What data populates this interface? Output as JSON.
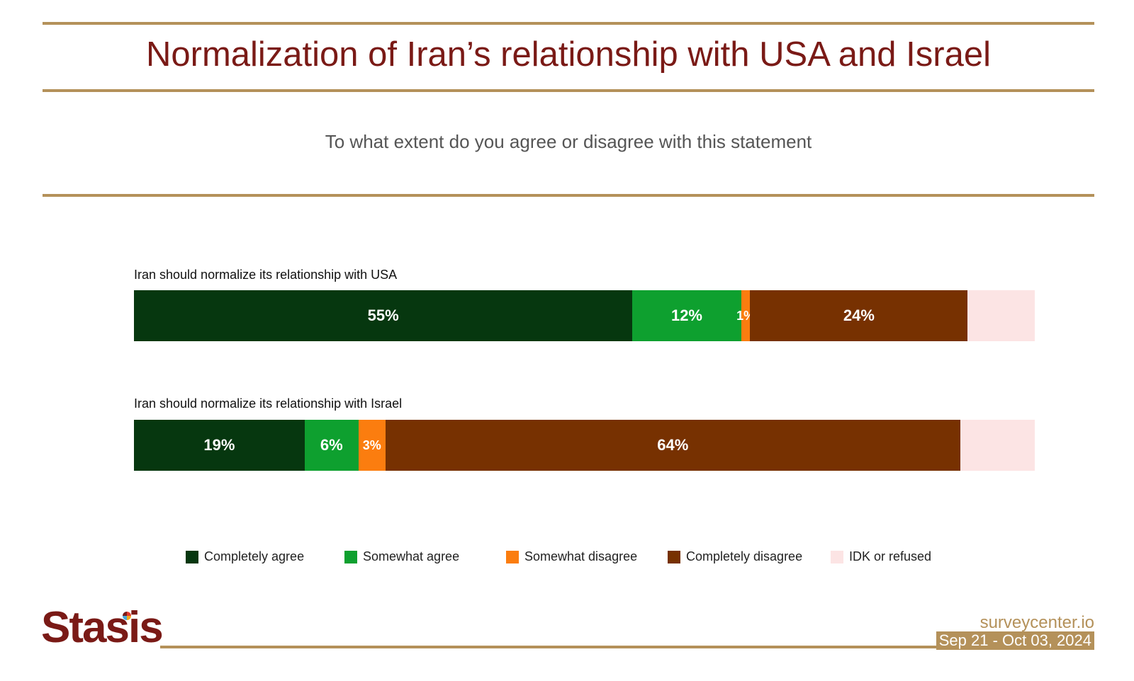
{
  "header": {
    "title": "Normalization of Iran’s relationship with USA and Israel",
    "subtitle": "To what extent do you agree or disagree with this statement"
  },
  "chart_data": {
    "type": "bar",
    "orientation": "horizontal",
    "stacked": true,
    "categories": [
      "Iran should normalize its relationship with USA",
      "Iran should normalize its relationship with Israel"
    ],
    "series": [
      {
        "name": "Completely agree",
        "color": "#06370f",
        "values": [
          55,
          19
        ],
        "labels": [
          "55%",
          "19%"
        ]
      },
      {
        "name": "Somewhat agree",
        "color": "#0ea02f",
        "values": [
          12,
          6
        ],
        "labels": [
          "12%",
          "6%"
        ]
      },
      {
        "name": "Somewhat disagree",
        "color": "#fb7d0f",
        "values": [
          1,
          3
        ],
        "labels": [
          "1%",
          "3%"
        ]
      },
      {
        "name": "Completely disagree",
        "color": "#773101",
        "values": [
          24,
          64
        ],
        "labels": [
          "24%",
          "64%"
        ]
      },
      {
        "name": "IDK or refused",
        "color": "#fce4e4",
        "values": [
          7.4,
          8.3
        ],
        "labels": [
          "",
          ""
        ]
      }
    ],
    "xlim": [
      0,
      100
    ],
    "legend_position": "bottom"
  },
  "footer": {
    "brand": "Stasis",
    "site": "surveycenter.io",
    "date_range": "Sep 21 - Oct 03, 2024"
  }
}
